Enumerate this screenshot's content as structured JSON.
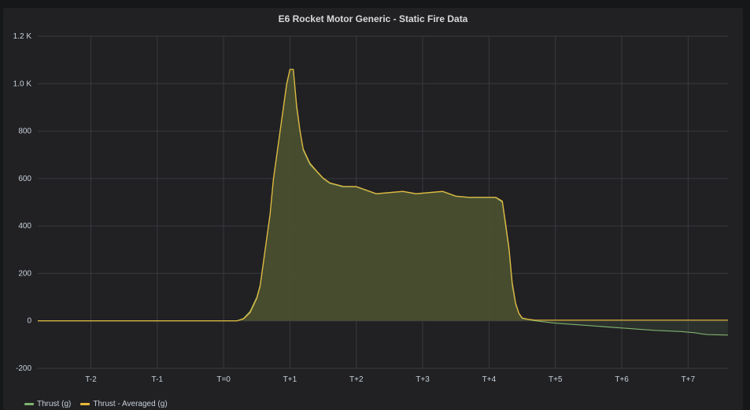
{
  "panel": {
    "title": "E6 Rocket Motor Generic - Static Fire Data"
  },
  "colors": {
    "thrust": "#7eb26d",
    "thrust_avg": "#eab839",
    "fill": "#454229",
    "grid": "#3a3a3e",
    "background": "#212124"
  },
  "chart_data": {
    "type": "line",
    "title": "E6 Rocket Motor Generic - Static Fire Data",
    "xlabel": "",
    "ylabel": "",
    "xlim": [
      -2.8,
      7.6
    ],
    "ylim": [
      -200,
      1200
    ],
    "x_ticks": [
      {
        "value": -2,
        "label": "T-2"
      },
      {
        "value": -1,
        "label": "T-1"
      },
      {
        "value": 0,
        "label": "T=0"
      },
      {
        "value": 1,
        "label": "T+1"
      },
      {
        "value": 2,
        "label": "T+2"
      },
      {
        "value": 3,
        "label": "T+3"
      },
      {
        "value": 4,
        "label": "T+4"
      },
      {
        "value": 5,
        "label": "T+5"
      },
      {
        "value": 6,
        "label": "T+6"
      },
      {
        "value": 7,
        "label": "T+7"
      }
    ],
    "y_ticks": [
      {
        "value": 1200,
        "label": "1.2 K"
      },
      {
        "value": 1000,
        "label": "1.0 K"
      },
      {
        "value": 800,
        "label": "800"
      },
      {
        "value": 600,
        "label": "600"
      },
      {
        "value": 400,
        "label": "400"
      },
      {
        "value": 200,
        "label": "200"
      },
      {
        "value": 0,
        "label": "0"
      },
      {
        "value": -200,
        "label": "-200"
      }
    ],
    "series": [
      {
        "name": "Thrust (g)",
        "color": "#7eb26d",
        "x": [
          -2.8,
          0.0,
          0.2,
          0.3,
          0.4,
          0.5,
          0.55,
          0.6,
          0.65,
          0.7,
          0.75,
          0.8,
          0.85,
          0.9,
          0.95,
          1.0,
          1.05,
          1.1,
          1.15,
          1.2,
          1.3,
          1.4,
          1.5,
          1.6,
          1.8,
          2.0,
          2.1,
          2.3,
          2.5,
          2.7,
          2.9,
          3.1,
          3.3,
          3.5,
          3.7,
          3.9,
          4.1,
          4.2,
          4.25,
          4.3,
          4.35,
          4.4,
          4.45,
          4.5,
          4.6,
          4.7,
          5.0,
          5.5,
          6.0,
          6.5,
          6.9,
          7.0,
          7.1,
          7.2,
          7.3,
          7.6
        ],
        "values": [
          0,
          0,
          0,
          10,
          40,
          100,
          150,
          250,
          350,
          450,
          600,
          700,
          800,
          900,
          1000,
          1060,
          1060,
          900,
          800,
          720,
          660,
          630,
          600,
          580,
          565,
          565,
          555,
          535,
          540,
          545,
          535,
          540,
          545,
          525,
          520,
          520,
          520,
          500,
          400,
          300,
          150,
          70,
          30,
          10,
          5,
          0,
          -10,
          -20,
          -30,
          -40,
          -45,
          -48,
          -50,
          -55,
          -58,
          -60
        ]
      },
      {
        "name": "Thrust - Averaged (g)",
        "color": "#eab839",
        "x": [
          -2.8,
          0.0,
          0.2,
          0.3,
          0.4,
          0.5,
          0.55,
          0.6,
          0.65,
          0.7,
          0.75,
          0.8,
          0.85,
          0.9,
          0.95,
          1.0,
          1.05,
          1.1,
          1.15,
          1.2,
          1.3,
          1.4,
          1.5,
          1.6,
          1.8,
          2.0,
          2.1,
          2.3,
          2.5,
          2.7,
          2.9,
          3.1,
          3.3,
          3.5,
          3.7,
          3.9,
          4.1,
          4.2,
          4.25,
          4.3,
          4.35,
          4.4,
          4.45,
          4.5,
          4.6,
          4.7,
          5.0,
          5.5,
          6.0,
          6.5,
          7.0,
          7.6
        ],
        "values": [
          0,
          0,
          0,
          8,
          35,
          95,
          145,
          245,
          345,
          445,
          595,
          695,
          795,
          895,
          995,
          1060,
          1060,
          910,
          805,
          725,
          665,
          632,
          602,
          582,
          567,
          566,
          556,
          536,
          541,
          546,
          536,
          541,
          546,
          526,
          521,
          521,
          521,
          505,
          410,
          310,
          160,
          75,
          32,
          12,
          6,
          3,
          3,
          3,
          3,
          3,
          3,
          3
        ]
      }
    ],
    "legend": [
      "Thrust (g)",
      "Thrust - Averaged (g)"
    ],
    "legend_position": "bottom-left",
    "grid": true
  }
}
